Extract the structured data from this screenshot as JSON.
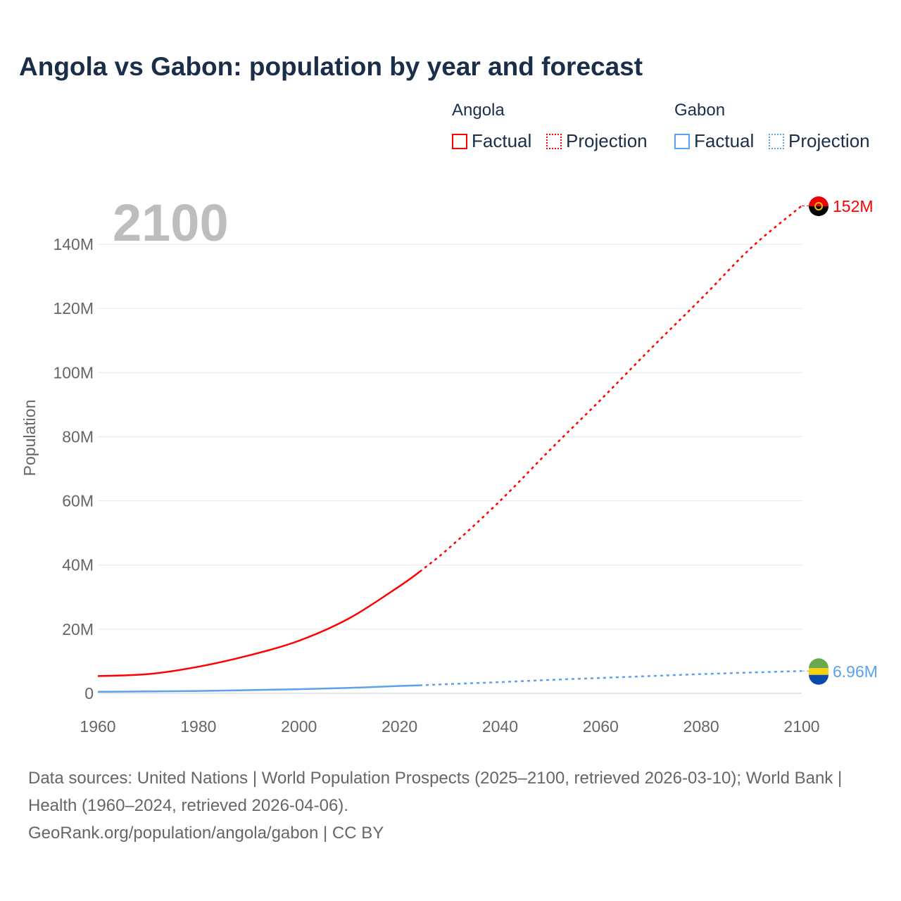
{
  "title": "Angola vs Gabon: population by year and forecast",
  "legend": {
    "groups": [
      {
        "name": "Angola",
        "color": "#ff0000",
        "factual": "Factual",
        "projection": "Projection"
      },
      {
        "name": "Gabon",
        "color": "#5aa2ea",
        "factual": "Factual",
        "projection": "Projection"
      }
    ]
  },
  "footer": {
    "sources": "Data sources: United Nations | World Population Prospects (2025–2100, retrieved 2026-03-10); World Bank | Health (1960–2024, retrieved 2026-04-06).",
    "credit": "GeoRank.org/population/angola/gabon | CC BY"
  },
  "chart_data": {
    "type": "line",
    "title": "Angola vs Gabon: population by year and forecast",
    "current_year_label": "2100",
    "xlabel": "",
    "ylabel": "Population",
    "xlim": [
      1960,
      2100
    ],
    "ylim": [
      0,
      140000000
    ],
    "x_ticks": [
      1960,
      1980,
      2000,
      2020,
      2040,
      2060,
      2080,
      2100
    ],
    "x_tick_labels": [
      "1960",
      "1980",
      "2000",
      "2020",
      "2040",
      "2060",
      "2080",
      "2100"
    ],
    "y_ticks": [
      0,
      20000000,
      40000000,
      60000000,
      80000000,
      100000000,
      120000000,
      140000000
    ],
    "y_tick_labels": [
      "0",
      "20M",
      "40M",
      "60M",
      "80M",
      "100M",
      "120M",
      "140M"
    ],
    "grid": true,
    "legend_position": "top-right",
    "projection_start": 2024,
    "series": [
      {
        "name": "Angola",
        "color": "#ff0000",
        "end_label": "152M",
        "x": [
          1960,
          1970,
          1980,
          1990,
          2000,
          2010,
          2020,
          2024,
          2030,
          2040,
          2050,
          2060,
          2070,
          2080,
          2090,
          2100
        ],
        "values": [
          5400000,
          6000000,
          8300000,
          11800000,
          16400000,
          23400000,
          33400000,
          37900000,
          45500000,
          60000000,
          76000000,
          91500000,
          107500000,
          123000000,
          139000000,
          152000000
        ]
      },
      {
        "name": "Gabon",
        "color": "#5aa2ea",
        "end_label": "6.96M",
        "x": [
          1960,
          1970,
          1980,
          1990,
          2000,
          2010,
          2020,
          2024,
          2030,
          2040,
          2050,
          2060,
          2070,
          2080,
          2090,
          2100
        ],
        "values": [
          500000,
          600000,
          750000,
          1000000,
          1300000,
          1700000,
          2300000,
          2500000,
          2900000,
          3500000,
          4200000,
          4800000,
          5400000,
          6000000,
          6500000,
          6960000
        ]
      }
    ]
  }
}
